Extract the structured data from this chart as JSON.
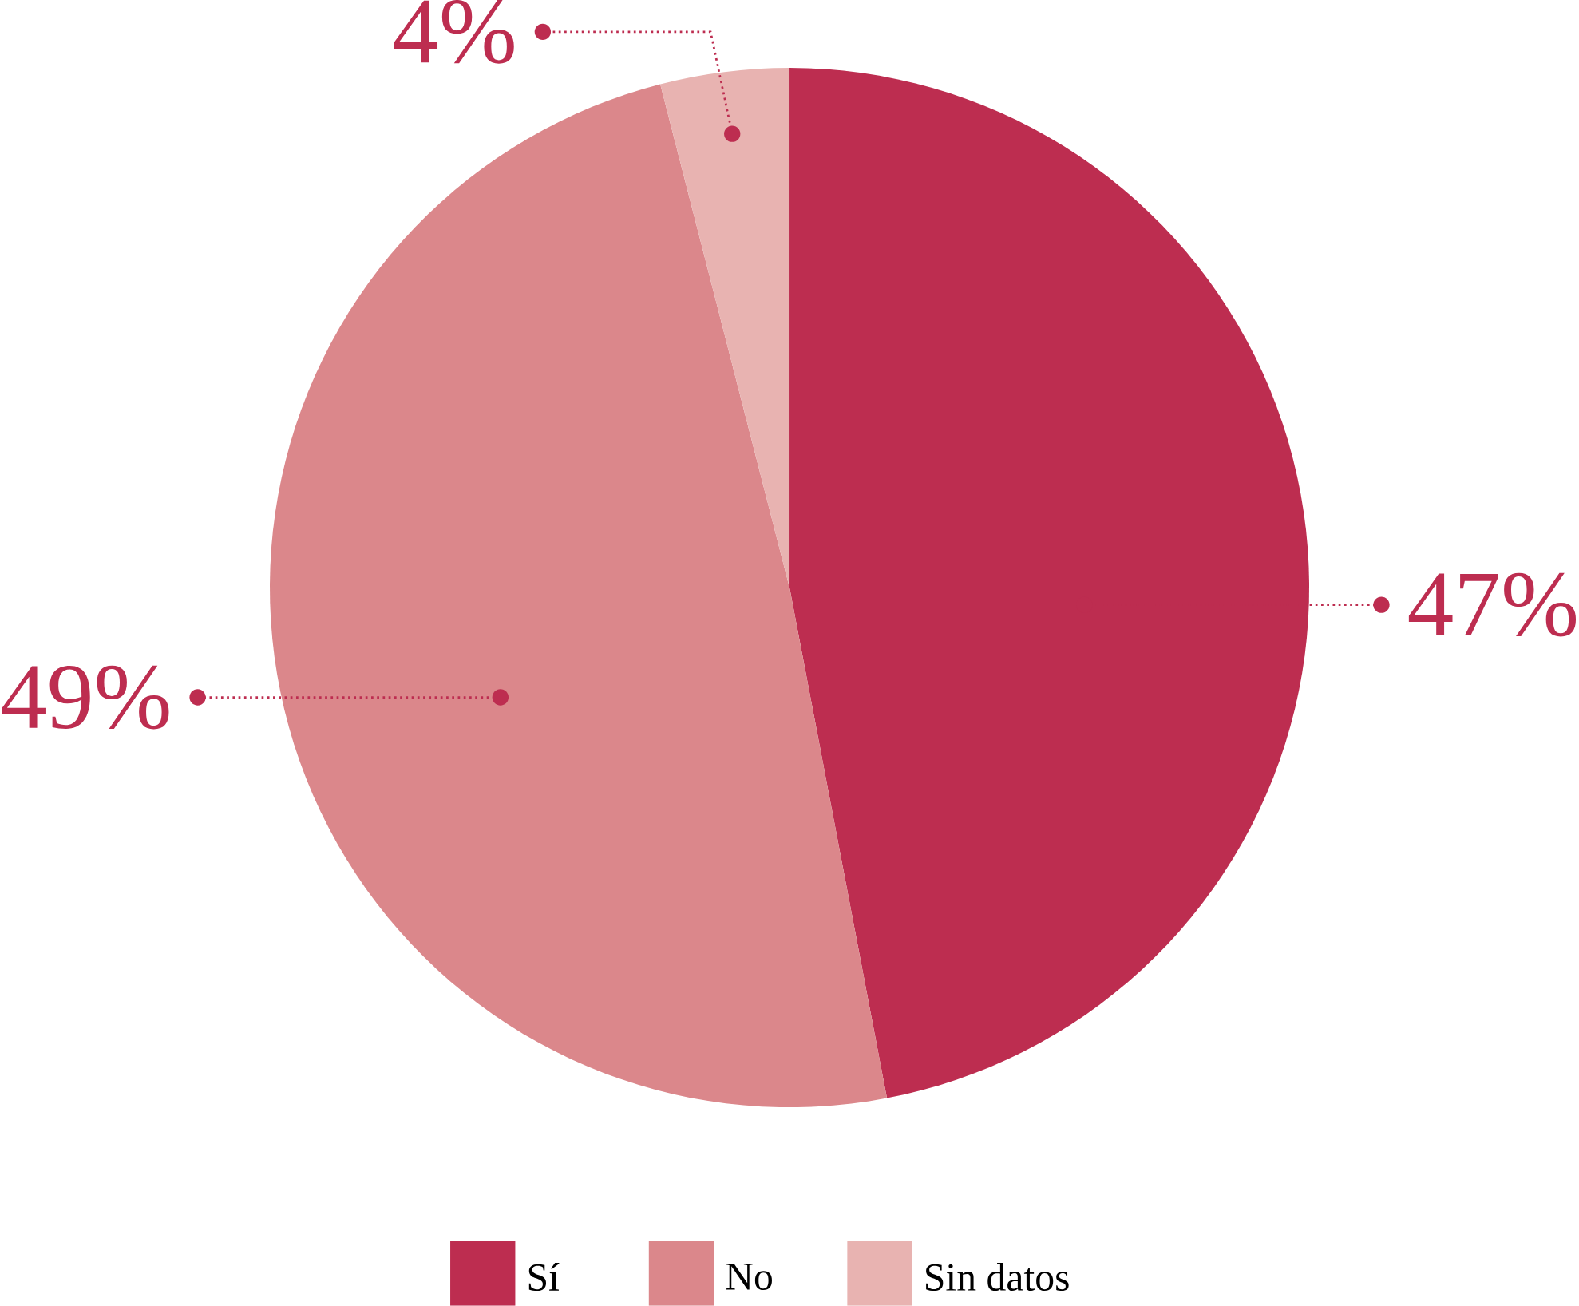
{
  "chart_data": {
    "type": "pie",
    "categories": [
      "Sí",
      "No",
      "Sin datos"
    ],
    "values": [
      47,
      49,
      4
    ],
    "value_labels": [
      "47%",
      "49%",
      "4%"
    ],
    "colors": [
      "#bd2d50",
      "#db878b",
      "#e8b3b1"
    ],
    "legend": "bottom"
  }
}
